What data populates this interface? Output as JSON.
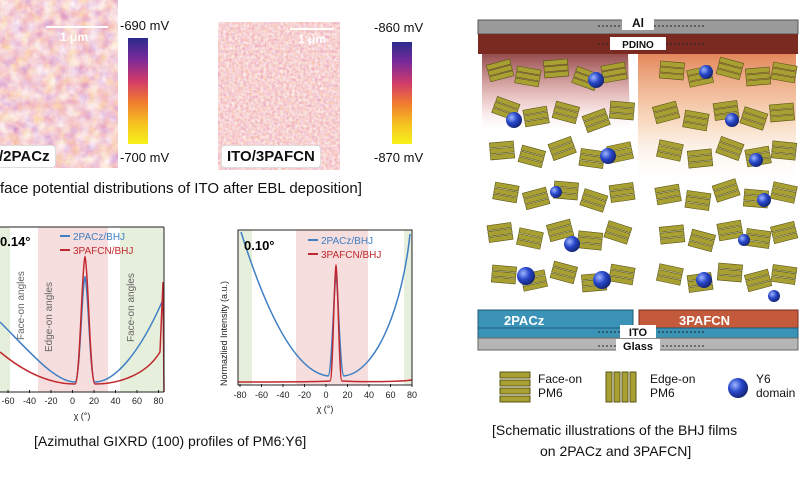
{
  "kpfm": {
    "left": {
      "sample_label": "/2PACz",
      "scale_label": "1 μm",
      "cb_top": "-690 mV",
      "cb_bottom": "-700 mV"
    },
    "right": {
      "sample_label": "ITO/3PAFCN",
      "scale_label": "1 μm",
      "cb_top": "-860 mV",
      "cb_bottom": "-870 mV"
    },
    "caption": "face potential distributions of ITO after EBL deposition]"
  },
  "gixrd": {
    "caption": "[Azimuthal GIXRD (100) profiles of PM6:Y6]",
    "left": {
      "angle_label": "0.14°",
      "legend": [
        "2PACz/BHJ",
        "3PAFCN/BHJ"
      ],
      "region_labels": [
        "Face-on angles",
        "Edge-on angles",
        "Face-on angles"
      ],
      "xticks": [
        "-60",
        "-40",
        "-20",
        "0",
        "20",
        "40",
        "60",
        "80"
      ],
      "xlabel": "χ (°)"
    },
    "right": {
      "angle_label": "0.10°",
      "legend": [
        "2PACz/BHJ",
        "3PAFCN/BHJ"
      ],
      "ylabel": "Normazlied Intensity (a.u.)",
      "xticks": [
        "-80",
        "-60",
        "-40",
        "-20",
        "0",
        "20",
        "40",
        "60",
        "80"
      ],
      "xlabel": "χ (°)"
    },
    "colors": {
      "blue": "#3f7fc4",
      "red": "#c0282d",
      "edge_bg": "#f7dede",
      "face_bg": "#e6efdc"
    }
  },
  "schematic": {
    "layer_labels": {
      "al": "Al",
      "pdino": "PDINO",
      "ito": "ITO",
      "glass": "Glass"
    },
    "left_substrate": "2PACz",
    "right_substrate": "3PAFCN",
    "legend": {
      "face_on": "Face-on\nPM6",
      "edge_on": "Edge-on\nPM6",
      "y6": "Y6\ndomain"
    },
    "caption_line1": "[Schematic illustrations of the BHJ films",
    "caption_line2": "on 2PACz and 3PAFCN]",
    "colors": {
      "olive": "#a8a032",
      "y6": "#2746c9",
      "substrate_left": "#3b93b8",
      "substrate_right": "#c45a3c"
    }
  }
}
